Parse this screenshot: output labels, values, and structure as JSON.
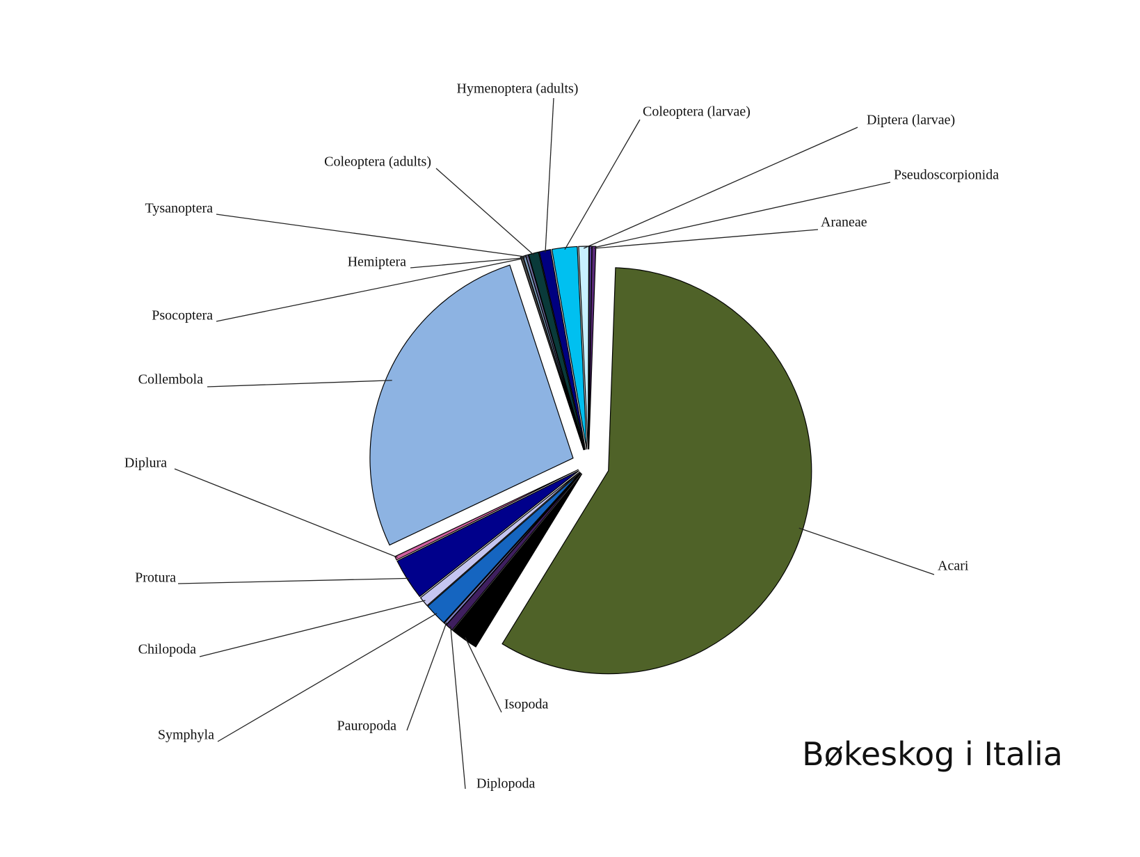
{
  "chart_data": {
    "type": "pie",
    "title": "Bøkeskog i Italia",
    "categories": [
      "Acari",
      "Isopoda",
      "Diplopoda",
      "Pauropoda",
      "Symphyla",
      "Chilopoda",
      "Protura",
      "Diplura",
      "Collembola",
      "Psocoptera",
      "Hemiptera",
      "Tysanoptera",
      "Coleoptera (adults)",
      "Hymenoptera (adults)",
      "Coleoptera (larvae)",
      "Diptera (larvae)",
      "Pseudoscorpionida",
      "Araneae"
    ],
    "values": [
      58.2,
      2.2,
      0.6,
      0.2,
      1.8,
      0.8,
      3.3,
      0.3,
      27,
      0.2,
      0.2,
      0.2,
      0.8,
      0.9,
      2.0,
      0.8,
      0.2,
      0.3
    ],
    "colors": [
      "#4f6228",
      "#000000",
      "#3f1f5f",
      "#7f7fbf",
      "#1565c0",
      "#c5c5f0",
      "#00008b",
      "#d060a0",
      "#8db3e2",
      "#4a4a4a",
      "#7f9fbf",
      "#6a6a9a",
      "#0a3a3a",
      "#000080",
      "#00c0f0",
      "#c8f0ff",
      "#6040a0",
      "#5a2a7a"
    ]
  }
}
